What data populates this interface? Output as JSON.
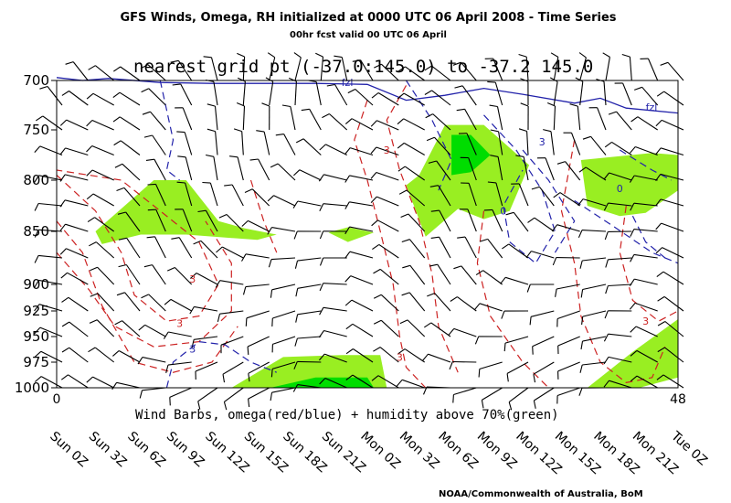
{
  "title": "GFS Winds, Omega, RH initialized at 0000 UTC  06 April 2008 - Time Series",
  "subtitle": "00hr fcst valid 00 UTC 06 April",
  "header": "nearest grid pt (-37.0:145.0) to -37.2   145.0",
  "caption": "Wind Barbs, omega(red/blue) + humidity above 70%(green)",
  "credit": "NOAA/Commonwealth of Australia, BoM",
  "colors": {
    "humidity": "#99ee22",
    "humidity_high": "#00dd00",
    "omega_positive": "#cc2222",
    "omega_negative": "#2222aa",
    "freezing_level": "#2222aa"
  },
  "chart_data": {
    "type": "time-height",
    "x_axis": {
      "range": [
        0,
        48
      ],
      "end_labels": [
        "0",
        "48"
      ],
      "tick_labels": [
        "Sun 0Z",
        "Sun 3Z",
        "Sun 6Z",
        "Sun 9Z",
        "Sun 12Z",
        "Sun 15Z",
        "Sun 18Z",
        "Sun 21Z",
        "Mon 0Z",
        "Mon 3Z",
        "Mon 6Z",
        "Mon 9Z",
        "Mon 12Z",
        "Mon 15Z",
        "Mon 18Z",
        "Mon 21Z",
        "Tue 0Z"
      ],
      "tick_hours": [
        0,
        3,
        6,
        9,
        12,
        15,
        18,
        21,
        24,
        27,
        30,
        33,
        36,
        39,
        42,
        45,
        48
      ]
    },
    "y_axis": {
      "unit": "hPa",
      "levels": [
        700,
        750,
        800,
        850,
        900,
        925,
        950,
        975,
        1000
      ],
      "tick_labels": [
        "700",
        "750",
        "800",
        "850",
        "900",
        "925",
        "950",
        "975",
        "1000"
      ],
      "range": [
        1000,
        700
      ],
      "inverted": true
    },
    "freezing_level": {
      "label": "fzl",
      "hours": [
        0,
        2,
        4,
        8,
        12,
        16,
        20,
        24,
        27,
        30,
        33,
        36,
        40,
        42,
        44,
        48
      ],
      "pressure_hPa": [
        697,
        700,
        698,
        702,
        703,
        703,
        703,
        704,
        720,
        715,
        708,
        714,
        723,
        718,
        728,
        733
      ]
    },
    "contour_labels": [
      {
        "text": "3",
        "sign": "positive",
        "hour": 10.5,
        "pressure_hPa": 895
      },
      {
        "text": "3",
        "sign": "positive",
        "hour": 9.5,
        "pressure_hPa": 937
      },
      {
        "text": "3",
        "sign": "positive",
        "hour": 26.5,
        "pressure_hPa": 970
      },
      {
        "text": "3",
        "sign": "positive",
        "hour": 25.5,
        "pressure_hPa": 770
      },
      {
        "text": "3",
        "sign": "positive",
        "hour": 45.5,
        "pressure_hPa": 935
      },
      {
        "text": "3",
        "sign": "negative",
        "hour": 37.5,
        "pressure_hPa": 762
      },
      {
        "text": "3",
        "sign": "negative",
        "hour": 10.5,
        "pressure_hPa": 962
      },
      {
        "text": "0",
        "sign": "negative",
        "hour": 34.5,
        "pressure_hPa": 830
      },
      {
        "text": "0",
        "sign": "negative",
        "hour": 43.5,
        "pressure_hPa": 808
      }
    ],
    "humidity_regions": [
      {
        "level": "above70",
        "vertices": [
          [
            3,
            850
          ],
          [
            7.5,
            800
          ],
          [
            10,
            800
          ],
          [
            12.5,
            840
          ],
          [
            14.5,
            847
          ],
          [
            17,
            853
          ],
          [
            15.5,
            858
          ],
          [
            10,
            853
          ],
          [
            6.5,
            853
          ],
          [
            3.5,
            862
          ]
        ]
      },
      {
        "level": "above70",
        "vertices": [
          [
            21,
            851
          ],
          [
            22.5,
            846
          ],
          [
            24.5,
            851
          ],
          [
            22.5,
            860
          ]
        ]
      },
      {
        "level": "above70",
        "vertices": [
          [
            13.5,
            1000
          ],
          [
            17.5,
            970
          ],
          [
            22,
            968
          ],
          [
            25,
            968
          ],
          [
            25.5,
            1000
          ]
        ]
      },
      {
        "level": "above90",
        "vertices": [
          [
            16.5,
            1000
          ],
          [
            20,
            990
          ],
          [
            24,
            990
          ],
          [
            24.5,
            1000
          ]
        ]
      },
      {
        "level": "above70",
        "vertices": [
          [
            28,
            795
          ],
          [
            30,
            745
          ],
          [
            33,
            745
          ],
          [
            36.5,
            785
          ],
          [
            35,
            830
          ],
          [
            33,
            838
          ],
          [
            31,
            828
          ],
          [
            28.5,
            855
          ],
          [
            27,
            805
          ]
        ]
      },
      {
        "level": "above70",
        "vertices": [
          [
            40.5,
            780
          ],
          [
            46,
            773
          ],
          [
            48,
            775
          ],
          [
            48,
            810
          ],
          [
            45.5,
            832
          ],
          [
            43.5,
            835
          ],
          [
            41,
            825
          ]
        ]
      },
      {
        "level": "above70",
        "vertices": [
          [
            41,
            1000
          ],
          [
            44.5,
            965
          ],
          [
            48,
            933
          ],
          [
            48,
            990
          ],
          [
            45,
            1000
          ]
        ]
      },
      {
        "level": "above90",
        "vertices": [
          [
            30.5,
            755
          ],
          [
            32,
            755
          ],
          [
            33.5,
            775
          ],
          [
            32,
            792
          ],
          [
            30.5,
            795
          ]
        ]
      }
    ],
    "wind_barbs": {
      "hours": [
        0,
        2,
        4,
        6,
        8,
        10,
        12,
        14,
        16,
        18,
        20,
        22,
        24,
        26,
        28,
        30,
        32,
        34,
        36,
        38,
        40,
        42,
        44,
        46,
        48
      ],
      "levels_hPa": [
        700,
        725,
        750,
        775,
        800,
        825,
        850,
        875,
        900,
        925,
        950,
        975,
        1000
      ]
    }
  }
}
